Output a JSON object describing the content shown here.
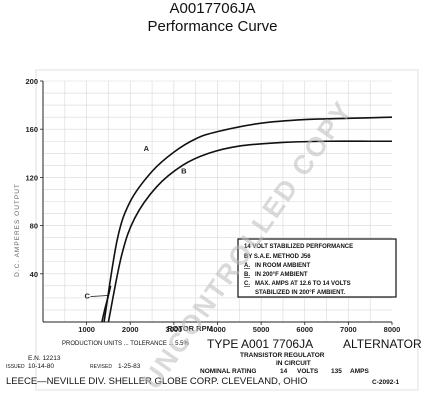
{
  "header": {
    "title": "A0017706JA",
    "subtitle": "Performance Curve"
  },
  "chart_data": {
    "type": "line",
    "ylabel": "D.C. AMPERES OUTPUT",
    "xlabel": "ROTOR RPM",
    "xlim": [
      0,
      8000
    ],
    "ylim": [
      0,
      200
    ],
    "x_ticks": [
      "1000",
      "2000",
      "3000",
      "4000",
      "5000",
      "6000",
      "7000",
      "8000"
    ],
    "y_ticks": [
      "40",
      "80",
      "120",
      "160",
      "200"
    ],
    "grid": true,
    "series": [
      {
        "name": "A",
        "color": "#111111",
        "x": [
          1400,
          1700,
          2000,
          2500,
          3000,
          3500,
          4000,
          5000,
          6000,
          7000,
          8000
        ],
        "y": [
          0,
          68,
          100,
          125,
          141,
          152,
          158,
          165,
          168,
          169,
          170
        ]
      },
      {
        "name": "B",
        "color": "#111111",
        "x": [
          1500,
          1800,
          2100,
          2600,
          3200,
          3800,
          4500,
          5500,
          6500,
          7500,
          8000
        ],
        "y": [
          0,
          55,
          86,
          112,
          130,
          140,
          146,
          149,
          150,
          150,
          150
        ]
      },
      {
        "name": "C",
        "color": "#111111",
        "x": [
          1350,
          1420,
          1500,
          1550
        ],
        "y": [
          0,
          11,
          22,
          30
        ]
      }
    ],
    "curve_labels": [
      "A",
      "B",
      "C"
    ],
    "legend": {
      "lines": [
        "14   VOLT STABILIZED PERFORMANCE",
        "BY S.A.E. METHOD J56",
        "IN ROOM AMBIENT",
        "IN 200°F AMBIENT",
        "MAX. AMPS AT 12.6 TO 14 VOLTS",
        "STABILIZED IN 200°F AMBIENT."
      ],
      "keys": [
        "A.",
        "B.",
        "C."
      ]
    }
  },
  "footer": {
    "production_note": "PRODUCTION UNITS ... TOLERANCE ... 5.5%",
    "type_line": "TYPE  A001 7706JA",
    "alternator_label": "ALTERNATOR",
    "transistor_label": "TRANSISTOR   REGULATOR",
    "in_circuit_label": "IN CIRCUIT",
    "nominal_rating_label": "NOMINAL RATING",
    "volts_value": "14",
    "volts_label": "VOLTS",
    "amps_value": "135",
    "amps_label": "AMPS",
    "en_number": "E.N. 12213",
    "issued_label": "ISSUED",
    "issued_date": "10-14-80",
    "revised_label": "REVISED",
    "revised_date": "1-25-83",
    "company_line": "LEECE—NEVILLE  DIV. SHELLER GLOBE CORP. CLEVELAND, OHIO",
    "drawing_number": "C-2092-1"
  },
  "watermark": {
    "text": "UNCONTROLLED COPY",
    "color": "#bdbdbd"
  }
}
